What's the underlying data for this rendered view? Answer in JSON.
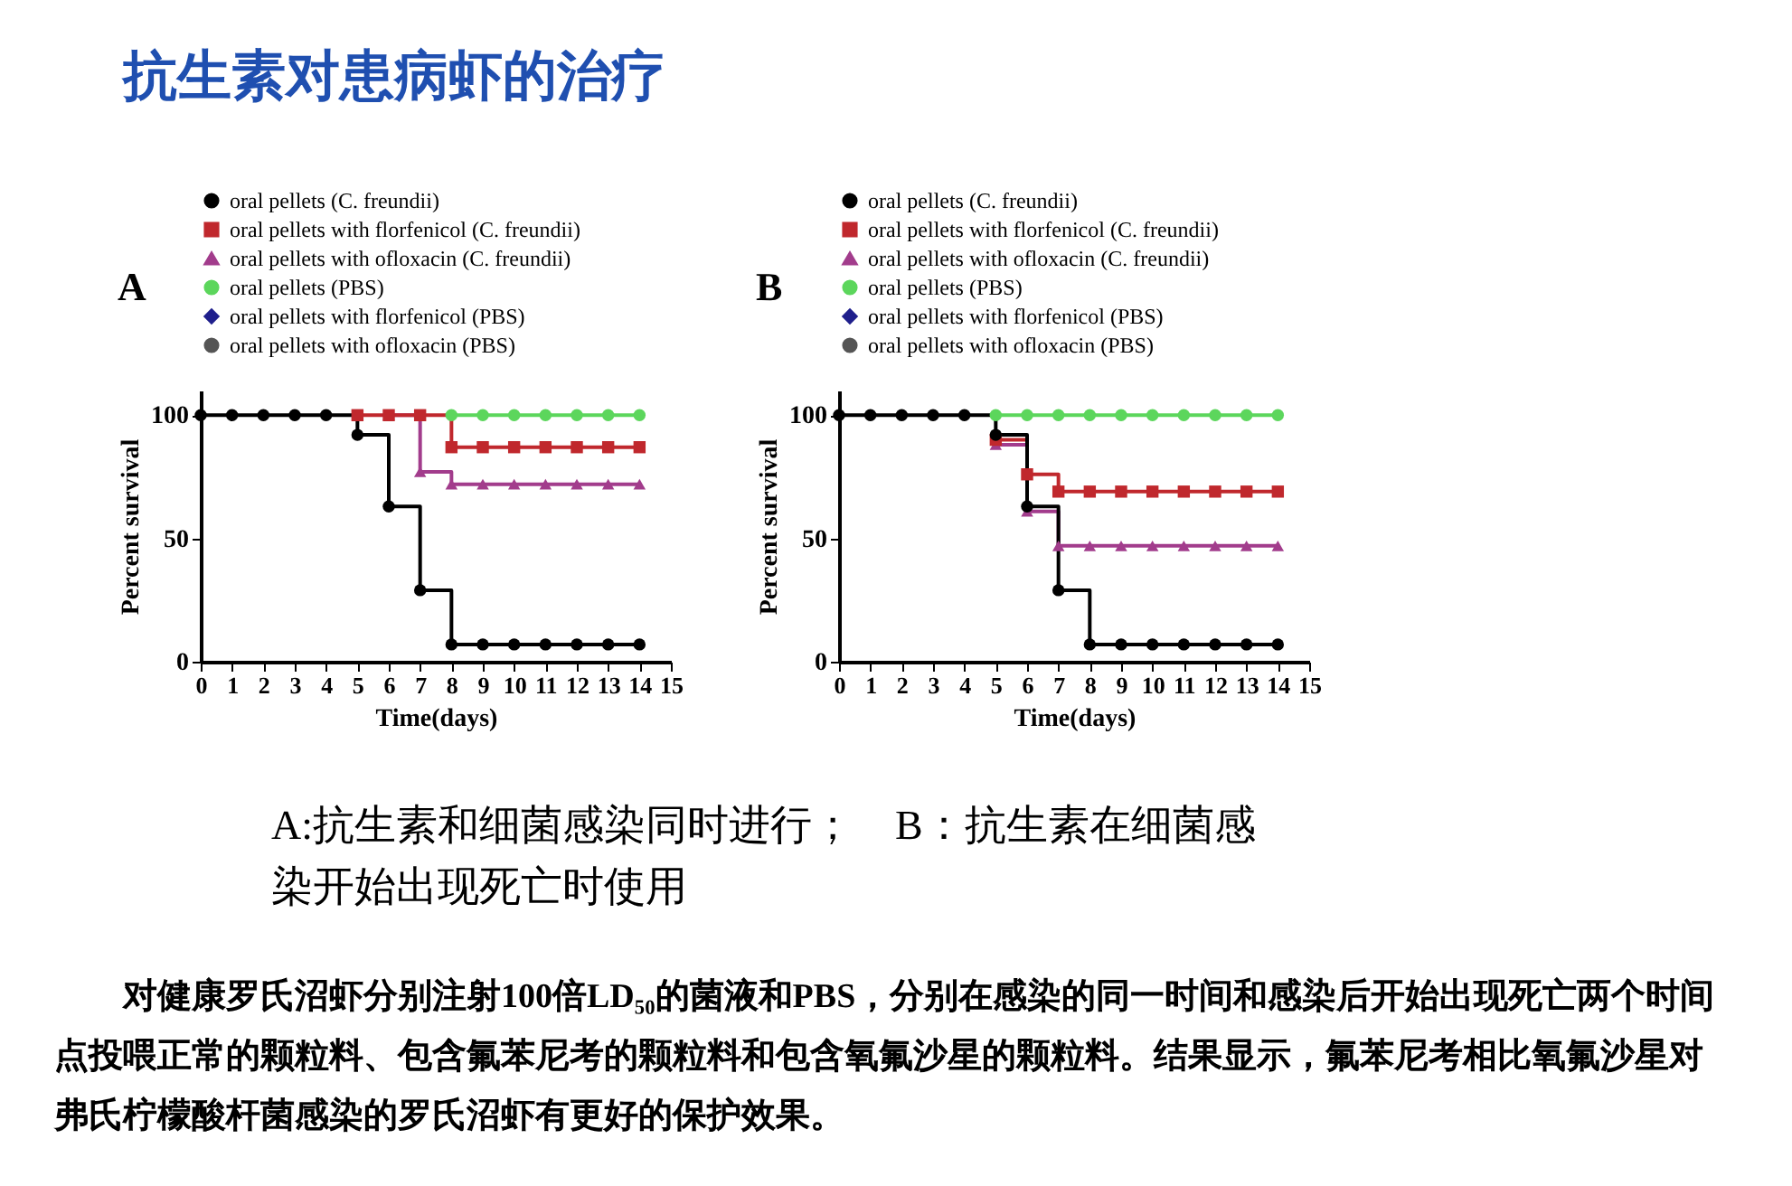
{
  "chart_data": [
    {
      "type": "step",
      "title": "A",
      "xlabel": "Time(days)",
      "ylabel": "Percent survival",
      "x": [
        0,
        1,
        2,
        3,
        4,
        5,
        6,
        7,
        8,
        9,
        10,
        11,
        12,
        13,
        14
      ],
      "series": [
        {
          "name": "oral pellets (C. freundii)",
          "color": "#000000",
          "marker": "circle",
          "values": [
            100,
            100,
            100,
            100,
            100,
            92,
            63,
            29,
            7,
            7,
            7,
            7,
            7,
            7,
            7
          ]
        },
        {
          "name": "oral pellets with florfenicol (C. freundii)",
          "color": "#c0282d",
          "marker": "square",
          "values": [
            null,
            null,
            null,
            null,
            null,
            100,
            100,
            100,
            87,
            87,
            87,
            87,
            87,
            87,
            87
          ]
        },
        {
          "name": "oral pellets with ofloxacin (C. freundii)",
          "color": "#a23c8c",
          "marker": "triangle",
          "values": [
            null,
            null,
            null,
            null,
            null,
            null,
            100,
            77,
            72,
            72,
            72,
            72,
            72,
            72,
            72
          ]
        },
        {
          "name": "oral pellets (PBS)",
          "color": "#5cd65c",
          "marker": "circle",
          "values": [
            null,
            null,
            null,
            null,
            null,
            null,
            null,
            null,
            100,
            100,
            100,
            100,
            100,
            100,
            100
          ]
        },
        {
          "name": "oral pellets with florfenicol (PBS)",
          "color": "#1f1f8c",
          "marker": "diamond",
          "values": [
            null,
            null,
            null,
            null,
            null,
            null,
            null,
            null,
            null,
            null,
            null,
            null,
            null,
            null,
            null
          ]
        },
        {
          "name": "oral pellets with ofloxacin (PBS)",
          "color": "#555555",
          "marker": "circle",
          "values": [
            null,
            null,
            null,
            null,
            null,
            null,
            null,
            null,
            null,
            null,
            null,
            null,
            null,
            null,
            null
          ]
        }
      ],
      "xlim": [
        0,
        15
      ],
      "xticks": [
        0,
        1,
        2,
        3,
        4,
        5,
        6,
        7,
        8,
        9,
        10,
        11,
        12,
        13,
        14,
        15
      ],
      "ylim": [
        0,
        110
      ],
      "yticks": [
        0,
        50,
        100
      ],
      "grid": false,
      "legend": "top",
      "annotations": [
        "抗生素对患病虾的治疗"
      ]
    },
    {
      "type": "step",
      "title": "B",
      "xlabel": "Time(days)",
      "ylabel": "Percent survival",
      "x": [
        0,
        1,
        2,
        3,
        4,
        5,
        6,
        7,
        8,
        9,
        10,
        11,
        12,
        13,
        14
      ],
      "series": [
        {
          "name": "oral pellets (C. freundii)",
          "color": "#000000",
          "marker": "circle",
          "values": [
            100,
            100,
            100,
            100,
            100,
            92,
            63,
            29,
            7,
            7,
            7,
            7,
            7,
            7,
            7
          ]
        },
        {
          "name": "oral pellets with florfenicol (C. freundii)",
          "color": "#c0282d",
          "marker": "square",
          "values": [
            null,
            null,
            null,
            null,
            null,
            90,
            76,
            69,
            69,
            69,
            69,
            69,
            69,
            69,
            69
          ]
        },
        {
          "name": "oral pellets with ofloxacin (C. freundii)",
          "color": "#a23c8c",
          "marker": "triangle",
          "values": [
            null,
            null,
            null,
            null,
            null,
            88,
            61,
            47,
            47,
            47,
            47,
            47,
            47,
            47,
            47
          ]
        },
        {
          "name": "oral pellets (PBS)",
          "color": "#5cd65c",
          "marker": "circle",
          "values": [
            null,
            null,
            null,
            null,
            null,
            100,
            100,
            100,
            100,
            100,
            100,
            100,
            100,
            100,
            100
          ]
        },
        {
          "name": "oral pellets with florfenicol (PBS)",
          "color": "#1f1f8c",
          "marker": "diamond",
          "values": [
            null,
            null,
            null,
            null,
            null,
            null,
            null,
            null,
            null,
            null,
            null,
            null,
            null,
            null,
            null
          ]
        },
        {
          "name": "oral pellets with ofloxacin (PBS)",
          "color": "#555555",
          "marker": "circle",
          "values": [
            null,
            null,
            null,
            null,
            null,
            null,
            null,
            null,
            null,
            null,
            null,
            null,
            null,
            null,
            null
          ]
        }
      ],
      "xlim": [
        0,
        15
      ],
      "xticks": [
        0,
        1,
        2,
        3,
        4,
        5,
        6,
        7,
        8,
        9,
        10,
        11,
        12,
        13,
        14,
        15
      ],
      "ylim": [
        0,
        110
      ],
      "yticks": [
        0,
        50,
        100
      ],
      "grid": false,
      "legend": "top",
      "annotations": [
        "A:抗生素和细菌感染同时进行；　B：抗生素在细菌感染开始出现死亡时使用",
        "对健康罗氏沼虾分别注射100倍LD₅₀的菌液和PBS，分别在感染的同一时间和感染后开始出现死亡两个时间点投喂正常的颗粒料、包含氟苯尼考的颗粒料和包含氧氟沙星的颗粒料。结果显示，氟苯尼考相比氧氟沙星对弗氏柠檬酸杆菌感染的罗氏沼虾有更好的保护效果。"
      ]
    }
  ]
}
